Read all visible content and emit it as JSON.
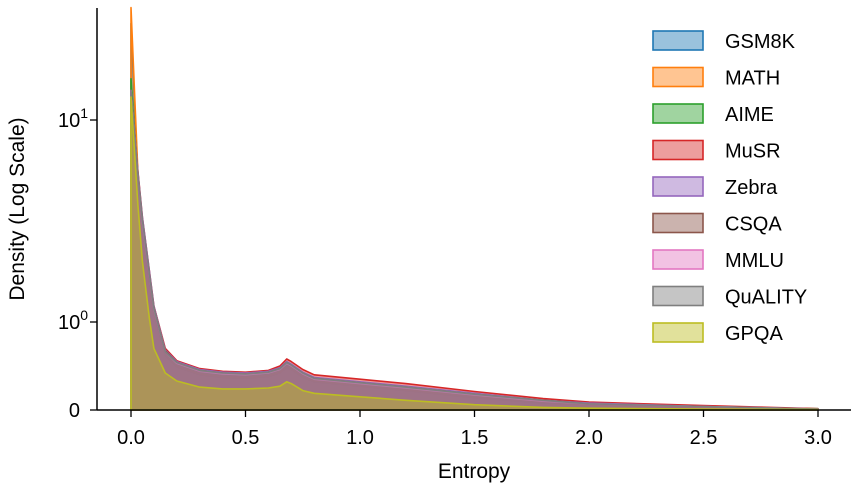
{
  "chart_data": {
    "type": "area",
    "xlabel": "Entropy",
    "ylabel": "Density (Log Scale)",
    "x_ticks": [
      0.0,
      0.5,
      1.0,
      1.5,
      2.0,
      2.5,
      3.0
    ],
    "x_tick_labels": [
      "0.0",
      "0.5",
      "1.0",
      "1.5",
      "2.0",
      "2.5",
      "3.0"
    ],
    "y_ticks": [
      {
        "value": 0,
        "base": "0",
        "exp": ""
      },
      {
        "value": 1,
        "base": "10",
        "exp": "0"
      },
      {
        "value": 10,
        "base": "10",
        "exp": "1"
      }
    ],
    "xlim": [
      -0.15,
      3.1
    ],
    "ylim": [
      0,
      40
    ],
    "yscale": "symlog",
    "grid": false,
    "legend_position": "top-right",
    "x": [
      0.0,
      0.03,
      0.05,
      0.08,
      0.1,
      0.15,
      0.2,
      0.3,
      0.4,
      0.5,
      0.6,
      0.65,
      0.68,
      0.7,
      0.75,
      0.8,
      1.0,
      1.2,
      1.5,
      1.8,
      2.0,
      2.5,
      3.0
    ],
    "series": [
      {
        "name": "GSM8K",
        "color": "#1f77b4",
        "values": [
          30,
          5.0,
          3.0,
          1.6,
          1.1,
          0.62,
          0.49,
          0.4,
          0.37,
          0.36,
          0.38,
          0.42,
          0.48,
          0.46,
          0.37,
          0.32,
          0.27,
          0.22,
          0.14,
          0.08,
          0.06,
          0.03,
          0.01
        ]
      },
      {
        "name": "MATH",
        "color": "#ff7f0e",
        "values": [
          36,
          5.5,
          3.2,
          1.7,
          1.15,
          0.64,
          0.5,
          0.41,
          0.38,
          0.37,
          0.39,
          0.43,
          0.49,
          0.47,
          0.38,
          0.33,
          0.28,
          0.23,
          0.15,
          0.09,
          0.06,
          0.03,
          0.01
        ]
      },
      {
        "name": "AIME",
        "color": "#2ca02c",
        "values": [
          16,
          5.2,
          3.1,
          1.7,
          1.15,
          0.65,
          0.52,
          0.43,
          0.4,
          0.39,
          0.41,
          0.45,
          0.51,
          0.49,
          0.4,
          0.35,
          0.3,
          0.25,
          0.17,
          0.1,
          0.07,
          0.04,
          0.015
        ]
      },
      {
        "name": "MuSR",
        "color": "#d62728",
        "values": [
          14,
          5.6,
          3.3,
          1.8,
          1.2,
          0.7,
          0.56,
          0.47,
          0.44,
          0.43,
          0.45,
          0.5,
          0.58,
          0.55,
          0.46,
          0.4,
          0.35,
          0.3,
          0.21,
          0.13,
          0.09,
          0.05,
          0.015
        ]
      },
      {
        "name": "Zebra",
        "color": "#9467bd",
        "values": [
          14,
          5.5,
          3.3,
          1.8,
          1.2,
          0.68,
          0.55,
          0.46,
          0.43,
          0.42,
          0.44,
          0.48,
          0.55,
          0.52,
          0.43,
          0.37,
          0.32,
          0.27,
          0.19,
          0.11,
          0.08,
          0.04,
          0.01
        ]
      },
      {
        "name": "CSQA",
        "color": "#8c564b",
        "values": [
          14,
          5.4,
          3.2,
          1.75,
          1.18,
          0.67,
          0.54,
          0.45,
          0.42,
          0.41,
          0.43,
          0.47,
          0.54,
          0.51,
          0.42,
          0.36,
          0.31,
          0.26,
          0.18,
          0.11,
          0.07,
          0.04,
          0.01
        ]
      },
      {
        "name": "MMLU",
        "color": "#e377c2",
        "values": [
          14,
          5.3,
          3.1,
          1.72,
          1.16,
          0.66,
          0.53,
          0.44,
          0.41,
          0.4,
          0.42,
          0.46,
          0.53,
          0.5,
          0.41,
          0.35,
          0.3,
          0.25,
          0.17,
          0.1,
          0.07,
          0.04,
          0.01
        ]
      },
      {
        "name": "QuALITY",
        "color": "#7f7f7f",
        "values": [
          14,
          5.4,
          3.2,
          1.74,
          1.17,
          0.66,
          0.54,
          0.45,
          0.42,
          0.41,
          0.43,
          0.47,
          0.54,
          0.51,
          0.42,
          0.36,
          0.31,
          0.26,
          0.18,
          0.11,
          0.07,
          0.04,
          0.01
        ]
      },
      {
        "name": "GPQA",
        "color": "#bcbd22",
        "values": [
          13,
          3.8,
          2.0,
          1.05,
          0.7,
          0.42,
          0.33,
          0.26,
          0.24,
          0.24,
          0.25,
          0.27,
          0.32,
          0.3,
          0.22,
          0.19,
          0.15,
          0.11,
          0.06,
          0.03,
          0.02,
          0.01,
          0.005
        ]
      }
    ]
  }
}
